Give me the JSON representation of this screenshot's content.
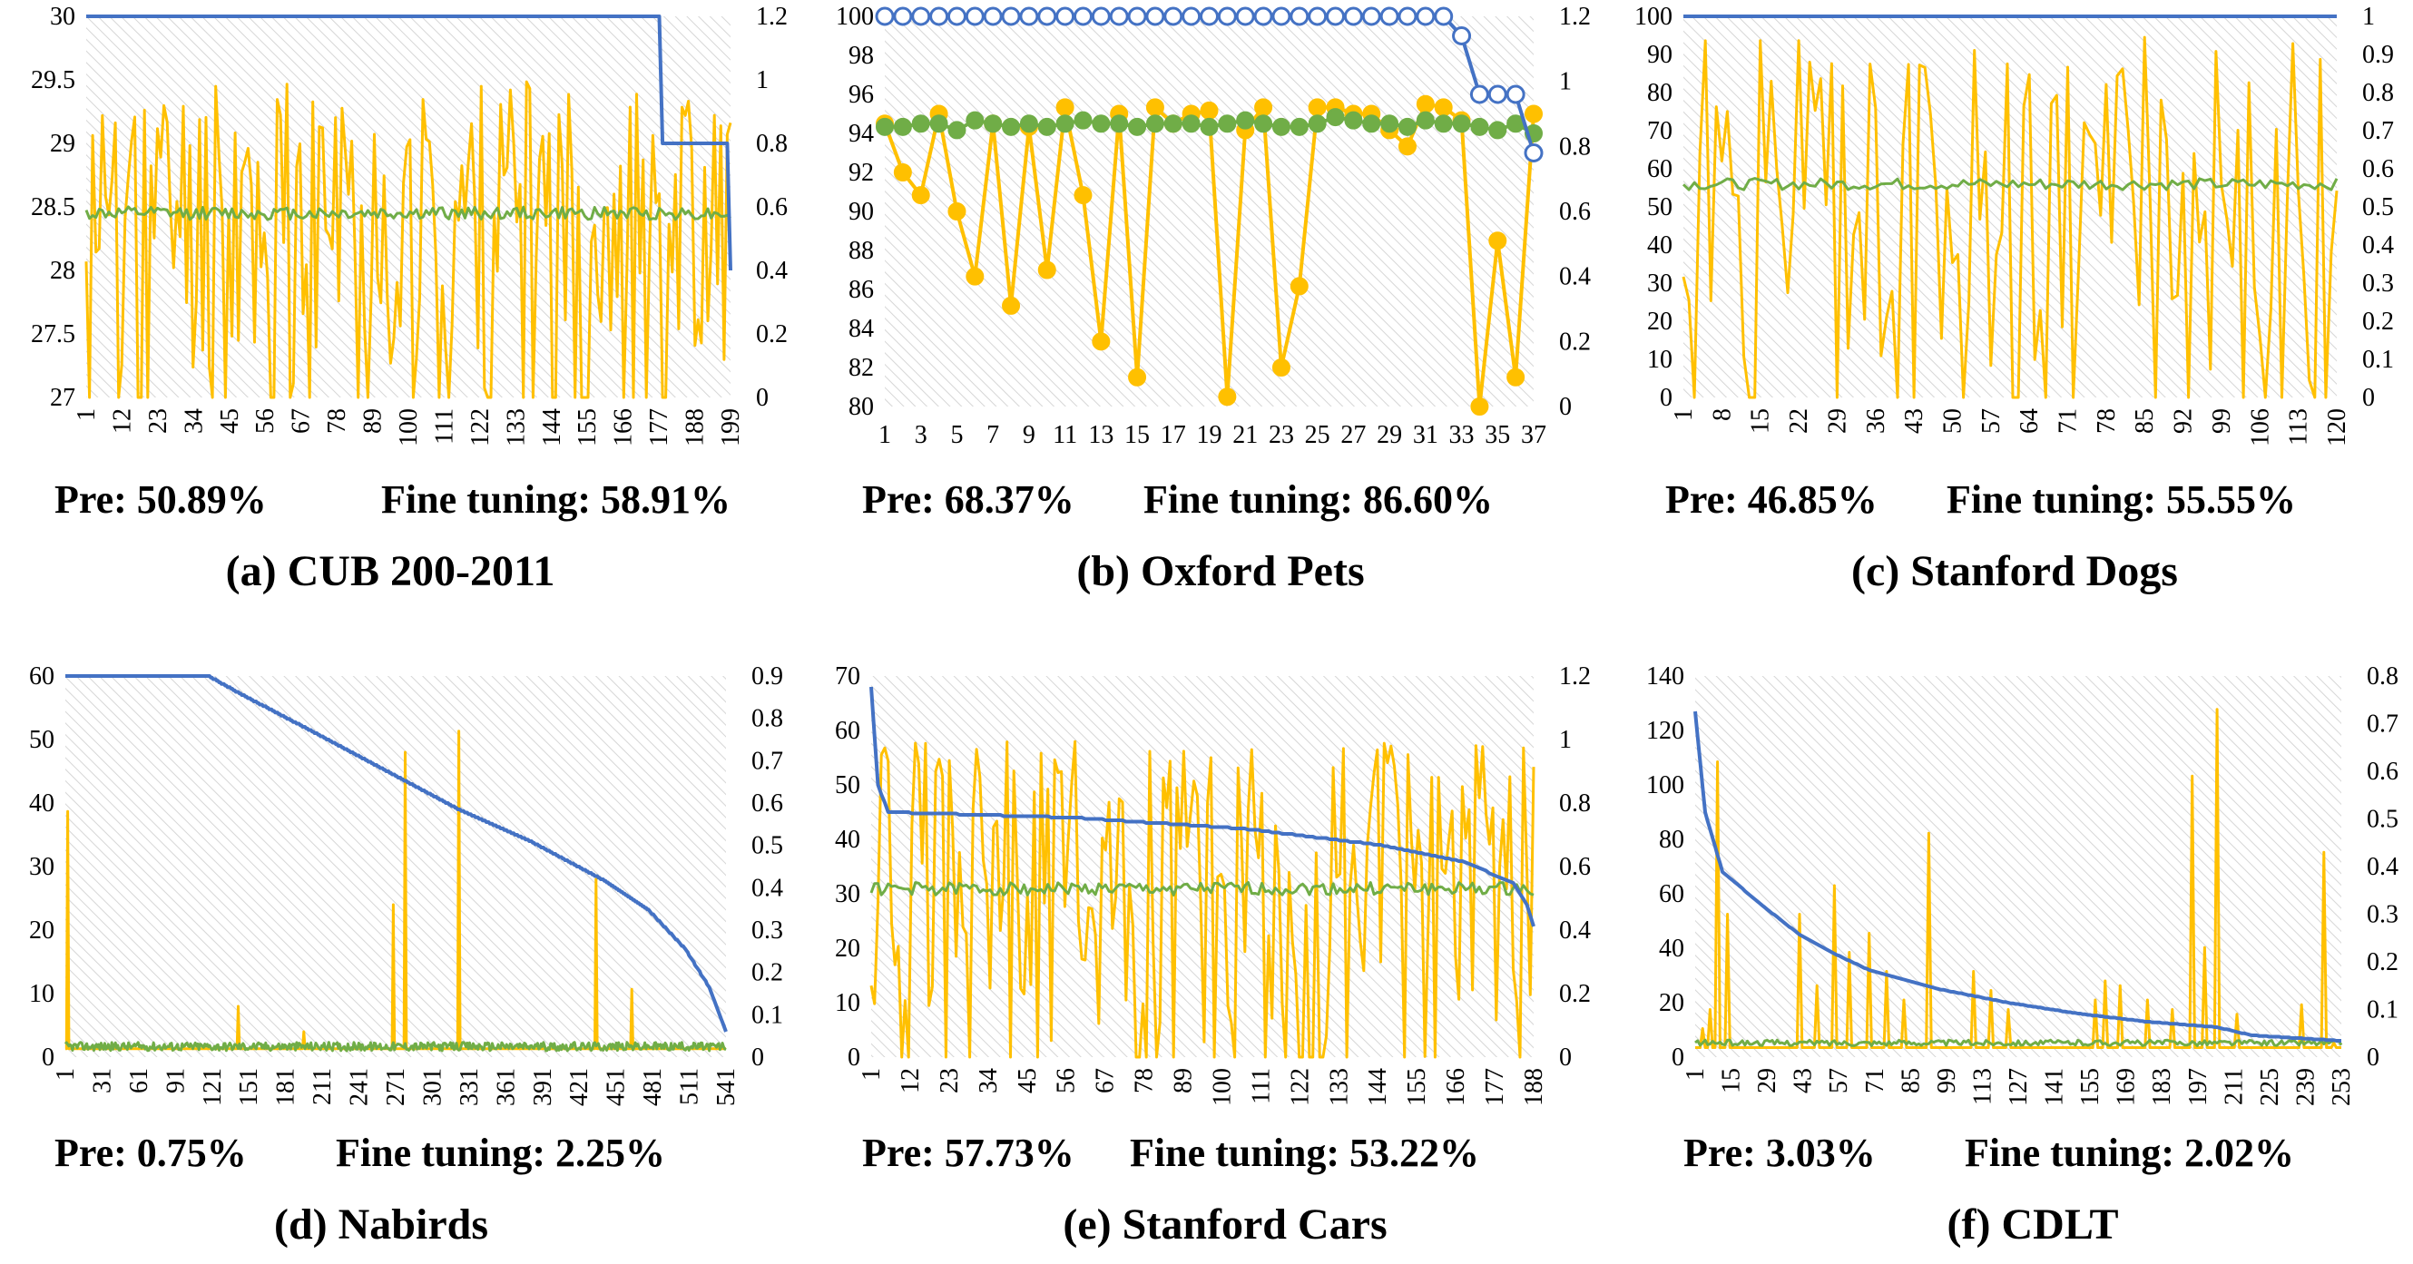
{
  "colors": {
    "blue": "#4472C4",
    "yellow": "#FFC000",
    "green": "#70AD47",
    "grid_hatch": "#d0d0d0"
  },
  "chart_data": [
    {
      "type": "line",
      "title": "(a) CUB 200-2011",
      "pre_label": "Pre: 50.89%",
      "fine_label": "Fine tuning: 58.91%",
      "n": 200,
      "left_ylim": [
        27,
        30
      ],
      "left_ticks": [
        "27",
        "27.5",
        "28",
        "28.5",
        "29",
        "29.5",
        "30"
      ],
      "right_ylim": [
        0,
        1.2
      ],
      "right_ticks": [
        "0",
        "0.2",
        "0.4",
        "0.6",
        "0.8",
        "1",
        "1.2"
      ],
      "x_ticks": [
        "1",
        "12",
        "23",
        "34",
        "45",
        "56",
        "67",
        "78",
        "89",
        "100",
        "111",
        "122",
        "133",
        "144",
        "155",
        "166",
        "177",
        "188",
        "199"
      ],
      "markers": false,
      "grid": "hatched",
      "series": [
        {
          "axis": "left",
          "color": "blue",
          "pattern": "step",
          "levels": [
            [
              1,
              30
            ],
            [
              178,
              30
            ],
            [
              179,
              29
            ],
            [
              199,
              29
            ],
            [
              200,
              28
            ]
          ]
        },
        {
          "axis": "right",
          "color": "yellow",
          "pattern": "noise",
          "low": 0,
          "high": 1.0,
          "seed": 11
        },
        {
          "axis": "right",
          "color": "green",
          "pattern": "flat",
          "center": 0.58,
          "amp": 0.02,
          "seed": 12
        }
      ]
    },
    {
      "type": "line",
      "title": "(b) Oxford Pets",
      "pre_label": "Pre: 68.37%",
      "fine_label": "Fine tuning: 86.60%",
      "n": 37,
      "left_ylim": [
        80,
        100
      ],
      "left_ticks": [
        "80",
        "82",
        "84",
        "86",
        "88",
        "90",
        "92",
        "94",
        "96",
        "98",
        "100"
      ],
      "right_ylim": [
        0,
        1.2
      ],
      "right_ticks": [
        "0",
        "0.2",
        "0.4",
        "0.6",
        "0.8",
        "1",
        "1.2"
      ],
      "x_ticks": [
        "1",
        "3",
        "5",
        "7",
        "9",
        "11",
        "13",
        "15",
        "17",
        "19",
        "21",
        "23",
        "25",
        "27",
        "29",
        "31",
        "33",
        "35",
        "37"
      ],
      "markers": true,
      "grid": "hatched",
      "series": [
        {
          "axis": "left",
          "color": "blue",
          "pattern": "values",
          "marker": "open",
          "values": [
            100,
            100,
            100,
            100,
            100,
            100,
            100,
            100,
            100,
            100,
            100,
            100,
            100,
            100,
            100,
            100,
            100,
            100,
            100,
            100,
            100,
            100,
            100,
            100,
            100,
            100,
            100,
            100,
            100,
            100,
            100,
            100,
            99,
            96,
            96,
            96,
            93
          ]
        },
        {
          "axis": "right",
          "color": "yellow",
          "pattern": "values",
          "marker": "filled",
          "values": [
            0.87,
            0.72,
            0.65,
            0.9,
            0.6,
            0.4,
            0.87,
            0.31,
            0.86,
            0.42,
            0.92,
            0.65,
            0.2,
            0.9,
            0.09,
            0.92,
            0.87,
            0.9,
            0.91,
            0.03,
            0.85,
            0.92,
            0.12,
            0.37,
            0.92,
            0.92,
            0.9,
            0.9,
            0.85,
            0.8,
            0.93,
            0.92,
            0.88,
            0.0,
            0.51,
            0.09,
            0.9
          ]
        },
        {
          "axis": "right",
          "color": "green",
          "pattern": "values",
          "marker": "filled",
          "values": [
            0.86,
            0.86,
            0.87,
            0.87,
            0.85,
            0.88,
            0.87,
            0.86,
            0.87,
            0.86,
            0.87,
            0.88,
            0.87,
            0.87,
            0.86,
            0.87,
            0.87,
            0.87,
            0.86,
            0.87,
            0.88,
            0.87,
            0.86,
            0.86,
            0.87,
            0.89,
            0.88,
            0.87,
            0.87,
            0.86,
            0.88,
            0.87,
            0.87,
            0.86,
            0.85,
            0.87,
            0.84
          ]
        }
      ]
    },
    {
      "type": "line",
      "title": "(c) Stanford Dogs",
      "pre_label": "Pre: 46.85%",
      "fine_label": "Fine tuning: 55.55%",
      "n": 120,
      "left_ylim": [
        0,
        100
      ],
      "left_ticks": [
        "0",
        "10",
        "20",
        "30",
        "40",
        "50",
        "60",
        "70",
        "80",
        "90",
        "100"
      ],
      "right_ylim": [
        0,
        1
      ],
      "right_ticks": [
        "0",
        "0.1",
        "0.2",
        "0.3",
        "0.4",
        "0.5",
        "0.6",
        "0.7",
        "0.8",
        "0.9",
        "1"
      ],
      "x_ticks": [
        "1",
        "8",
        "15",
        "22",
        "29",
        "36",
        "43",
        "50",
        "57",
        "64",
        "71",
        "78",
        "85",
        "92",
        "99",
        "106",
        "113",
        "120"
      ],
      "markers": false,
      "grid": "hatched",
      "series": [
        {
          "axis": "left",
          "color": "blue",
          "pattern": "step",
          "levels": [
            [
              1,
              100
            ],
            [
              120,
              100
            ]
          ]
        },
        {
          "axis": "right",
          "color": "yellow",
          "pattern": "noise",
          "low": 0,
          "high": 0.95,
          "seed": 31
        },
        {
          "axis": "right",
          "color": "green",
          "pattern": "flat",
          "center": 0.56,
          "amp": 0.015,
          "seed": 32
        }
      ]
    },
    {
      "type": "line",
      "title": "(d) Nabirds",
      "pre_label": "Pre: 0.75%",
      "fine_label": "Fine tuning: 2.25%",
      "n": 555,
      "left_ylim": [
        0,
        60
      ],
      "left_ticks": [
        "0",
        "10",
        "20",
        "30",
        "40",
        "50",
        "60"
      ],
      "right_ylim": [
        0,
        0.9
      ],
      "right_ticks": [
        "0",
        "0.1",
        "0.2",
        "0.3",
        "0.4",
        "0.5",
        "0.6",
        "0.7",
        "0.8",
        "0.9"
      ],
      "x_ticks": [
        "1",
        "31",
        "61",
        "91",
        "121",
        "151",
        "181",
        "211",
        "241",
        "271",
        "301",
        "331",
        "361",
        "391",
        "421",
        "451",
        "481",
        "511",
        "541"
      ],
      "markers": false,
      "grid": "hatched",
      "series": [
        {
          "axis": "left",
          "color": "blue",
          "pattern": "decay",
          "knots": [
            [
              1,
              60
            ],
            [
              121,
              60
            ],
            [
              150,
              57
            ],
            [
              211,
              51
            ],
            [
              271,
              45
            ],
            [
              331,
              39
            ],
            [
              391,
              34
            ],
            [
              451,
              28
            ],
            [
              491,
              23
            ],
            [
              521,
              17
            ],
            [
              541,
              11
            ],
            [
              555,
              4
            ]
          ]
        },
        {
          "axis": "right",
          "color": "yellow",
          "pattern": "spikes",
          "base": 0.02,
          "spikes": [
            [
              3,
              0.58
            ],
            [
              146,
              0.12
            ],
            [
              201,
              0.06
            ],
            [
              276,
              0.36
            ],
            [
              286,
              0.72
            ],
            [
              331,
              0.77
            ],
            [
              446,
              0.42
            ],
            [
              476,
              0.16
            ]
          ]
        },
        {
          "axis": "right",
          "color": "green",
          "pattern": "flat",
          "center": 0.025,
          "amp": 0.01,
          "seed": 42
        }
      ]
    },
    {
      "type": "line",
      "title": "(e) Stanford Cars",
      "pre_label": "Pre: 57.73%",
      "fine_label": "Fine tuning: 53.22%",
      "n": 196,
      "left_ylim": [
        0,
        70
      ],
      "left_ticks": [
        "0",
        "10",
        "20",
        "30",
        "40",
        "50",
        "60",
        "70"
      ],
      "right_ylim": [
        0,
        1.2
      ],
      "right_ticks": [
        "0",
        "0.2",
        "0.4",
        "0.6",
        "0.8",
        "1",
        "1.2"
      ],
      "x_ticks": [
        "1",
        "12",
        "23",
        "34",
        "45",
        "56",
        "67",
        "78",
        "89",
        "100",
        "111",
        "122",
        "133",
        "144",
        "155",
        "166",
        "177",
        "188"
      ],
      "markers": false,
      "grid": "hatched",
      "series": [
        {
          "axis": "left",
          "color": "blue",
          "pattern": "decay",
          "knots": [
            [
              1,
              68
            ],
            [
              3,
              50
            ],
            [
              6,
              45
            ],
            [
              60,
              44
            ],
            [
              110,
              42
            ],
            [
              150,
              39
            ],
            [
              175,
              36
            ],
            [
              190,
              32
            ],
            [
              194,
              28
            ],
            [
              196,
              24
            ]
          ]
        },
        {
          "axis": "right",
          "color": "yellow",
          "pattern": "noise",
          "low": 0,
          "high": 1.0,
          "seed": 51
        },
        {
          "axis": "right",
          "color": "green",
          "pattern": "flat",
          "center": 0.53,
          "amp": 0.02,
          "seed": 52
        }
      ]
    },
    {
      "type": "line",
      "title": "(f) CDLT",
      "pre_label": "Pre: 3.03%",
      "fine_label": "Fine tuning: 2.02%",
      "n": 261,
      "left_ylim": [
        0,
        140
      ],
      "left_ticks": [
        "0",
        "20",
        "40",
        "60",
        "80",
        "100",
        "120",
        "140"
      ],
      "right_ylim": [
        0,
        0.8
      ],
      "right_ticks": [
        "0",
        "0.1",
        "0.2",
        "0.3",
        "0.4",
        "0.5",
        "0.6",
        "0.7",
        "0.8"
      ],
      "x_ticks": [
        "1",
        "15",
        "29",
        "43",
        "57",
        "71",
        "85",
        "99",
        "113",
        "127",
        "141",
        "155",
        "169",
        "183",
        "197",
        "211",
        "225",
        "239",
        "253"
      ],
      "markers": false,
      "grid": "hatched",
      "series": [
        {
          "axis": "left",
          "color": "blue",
          "pattern": "decay",
          "knots": [
            [
              1,
              127
            ],
            [
              5,
              90
            ],
            [
              12,
              68
            ],
            [
              29,
              55
            ],
            [
              43,
              45
            ],
            [
              57,
              38
            ],
            [
              71,
              32
            ],
            [
              99,
              25
            ],
            [
              127,
              20
            ],
            [
              155,
              16
            ],
            [
              183,
              13
            ],
            [
              211,
              11
            ],
            [
              225,
              8
            ],
            [
              261,
              6
            ]
          ]
        },
        {
          "axis": "right",
          "color": "yellow",
          "pattern": "spikes",
          "base": 0.02,
          "spikes": [
            [
              4,
              0.06
            ],
            [
              7,
              0.1
            ],
            [
              10,
              0.62
            ],
            [
              14,
              0.3
            ],
            [
              43,
              0.3
            ],
            [
              50,
              0.15
            ],
            [
              57,
              0.36
            ],
            [
              63,
              0.22
            ],
            [
              71,
              0.26
            ],
            [
              78,
              0.18
            ],
            [
              85,
              0.12
            ],
            [
              95,
              0.47
            ],
            [
              113,
              0.18
            ],
            [
              120,
              0.14
            ],
            [
              127,
              0.1
            ],
            [
              162,
              0.12
            ],
            [
              166,
              0.16
            ],
            [
              172,
              0.15
            ],
            [
              183,
              0.12
            ],
            [
              193,
              0.1
            ],
            [
              201,
              0.59
            ],
            [
              206,
              0.23
            ],
            [
              211,
              0.73
            ],
            [
              219,
              0.09
            ],
            [
              245,
              0.11
            ],
            [
              254,
              0.43
            ],
            [
              258,
              0.03
            ]
          ]
        },
        {
          "axis": "right",
          "color": "green",
          "pattern": "flat",
          "center": 0.03,
          "amp": 0.006,
          "seed": 62
        }
      ]
    }
  ]
}
